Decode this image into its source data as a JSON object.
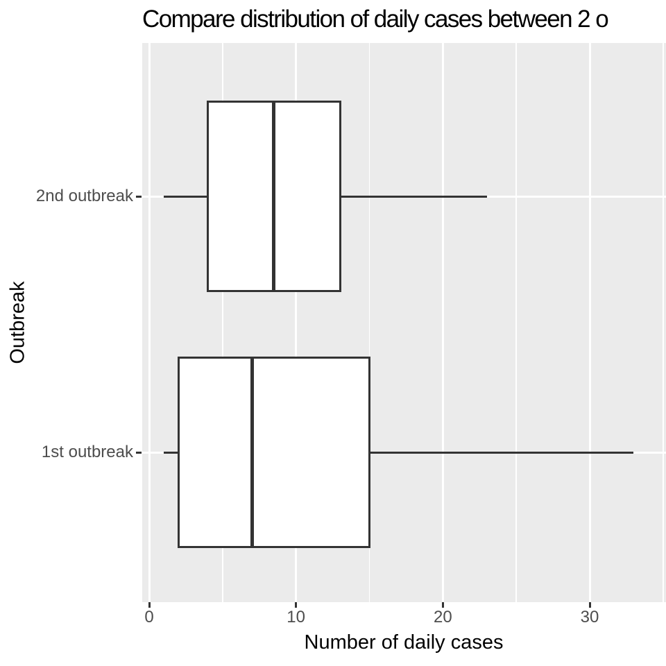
{
  "title": "Compare distribution of daily cases between 2 o",
  "axes": {
    "x_title": "Number of daily cases",
    "y_title": "Outbreak"
  },
  "colors": {
    "panel_background": "#EBEBEB",
    "gridline": "#FFFFFF",
    "box_outline": "#333333",
    "box_fill": "#FFFFFF",
    "axis_text": "#4D4D4D",
    "tick_mark": "#333333",
    "title_text": "#000000"
  },
  "chart_data": {
    "type": "boxplot",
    "orientation": "horizontal",
    "title": "Compare distribution of daily cases between 2 o",
    "xlabel": "Number of daily cases",
    "ylabel": "Outbreak",
    "x_ticks": [
      0,
      10,
      20,
      30
    ],
    "x_minor_ticks": [
      5,
      15,
      25,
      35
    ],
    "xlim": [
      -0.5,
      35.2
    ],
    "grid": "on",
    "legend": "none",
    "categories": [
      "2nd outbreak",
      "1st outbreak"
    ],
    "series": [
      {
        "name": "2nd outbreak",
        "min": 1,
        "q1": 4,
        "median": 8.5,
        "q3": 13,
        "max": 23,
        "outliers": []
      },
      {
        "name": "1st outbreak",
        "min": 1,
        "q1": 2,
        "median": 7,
        "q3": 15,
        "max": 33,
        "outliers": []
      }
    ]
  }
}
